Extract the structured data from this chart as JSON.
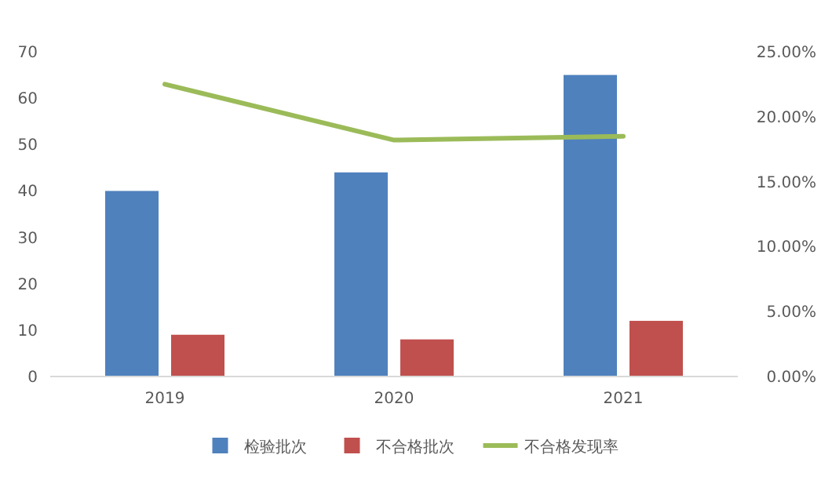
{
  "chart_data": {
    "type": "bar",
    "categories": [
      "2019",
      "2020",
      "2021"
    ],
    "series": [
      {
        "name": "检验批次",
        "color": "#4f81bd",
        "values": [
          40,
          44,
          65
        ]
      },
      {
        "name": "不合格批次",
        "color": "#c0504d",
        "values": [
          9,
          8,
          12
        ]
      },
      {
        "name": "不合格发现率",
        "color": "#9bbb59",
        "type": "line",
        "axis": "y2",
        "values": [
          22.5,
          18.2,
          18.5
        ]
      }
    ],
    "ylim": [
      0,
      70
    ],
    "yticks": [
      0,
      10,
      20,
      30,
      40,
      50,
      60,
      70
    ],
    "y2lim": [
      0,
      25
    ],
    "y2ticks": [
      {
        "value": 0,
        "label": "0.00%"
      },
      {
        "value": 5,
        "label": "5.00%"
      },
      {
        "value": 10,
        "label": "10.00%"
      },
      {
        "value": 15,
        "label": "15.00%"
      },
      {
        "value": 20,
        "label": "20.00%"
      },
      {
        "value": 25,
        "label": "25.00%"
      }
    ],
    "legend": "bottom",
    "grid": false
  }
}
